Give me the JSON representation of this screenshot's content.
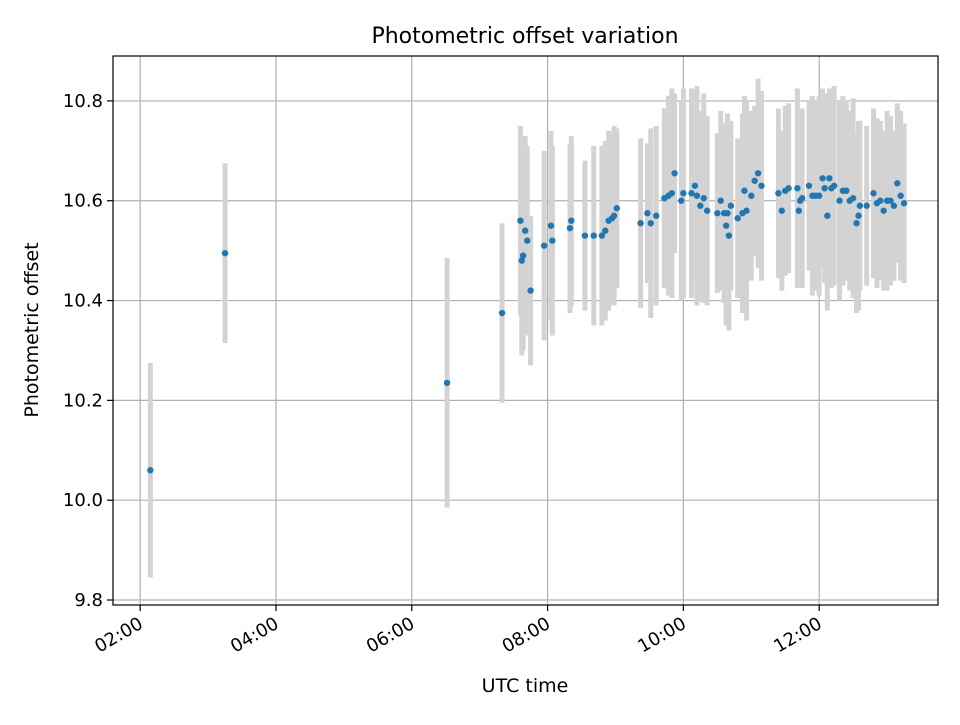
{
  "chart_data": {
    "type": "scatter",
    "title": "Photometric offset variation",
    "xlabel": "UTC time",
    "ylabel": "Photometric offset",
    "x_unit": "hours (UTC)",
    "xlim": [
      1.6,
      13.75
    ],
    "ylim": [
      9.79,
      10.89
    ],
    "x_ticks": [
      {
        "value": 2,
        "label": "02:00"
      },
      {
        "value": 4,
        "label": "04:00"
      },
      {
        "value": 6,
        "label": "06:00"
      },
      {
        "value": 8,
        "label": "08:00"
      },
      {
        "value": 10,
        "label": "10:00"
      },
      {
        "value": 12,
        "label": "12:00"
      }
    ],
    "y_ticks": [
      {
        "value": 9.8,
        "label": "9.8"
      },
      {
        "value": 10.0,
        "label": "10.0"
      },
      {
        "value": 10.2,
        "label": "10.2"
      },
      {
        "value": 10.4,
        "label": "10.4"
      },
      {
        "value": 10.6,
        "label": "10.6"
      },
      {
        "value": 10.8,
        "label": "10.8"
      }
    ],
    "grid": true,
    "colors": {
      "points": "#1f77b4",
      "error_bars": "#d3d3d3",
      "grid": "#b0b0b0"
    },
    "series": [
      {
        "x": [
          2.15,
          3.25,
          6.52,
          7.33,
          7.6,
          7.62,
          7.64,
          7.67,
          7.7,
          7.75,
          7.95,
          8.05,
          8.07,
          8.33,
          8.35,
          8.55,
          8.68,
          8.8,
          8.85,
          8.9,
          8.95,
          8.98,
          9.02,
          9.37,
          9.47,
          9.52,
          9.6,
          9.72,
          9.78,
          9.83,
          9.87,
          9.97,
          10.0,
          10.12,
          10.17,
          10.2,
          10.25,
          10.3,
          10.35,
          10.5,
          10.55,
          10.6,
          10.63,
          10.65,
          10.67,
          10.7,
          10.8,
          10.87,
          10.9,
          10.93,
          11.0,
          11.05,
          11.1,
          11.15,
          11.4,
          11.45,
          11.5,
          11.55,
          11.68,
          11.7,
          11.72,
          11.75,
          11.85,
          11.9,
          11.95,
          12.0,
          12.05,
          12.08,
          12.12,
          12.15,
          12.18,
          12.22,
          12.3,
          12.35,
          12.4,
          12.45,
          12.5,
          12.55,
          12.58,
          12.6,
          12.7,
          12.8,
          12.85,
          12.9,
          12.95,
          13.0,
          13.05,
          13.1,
          13.15,
          13.2,
          13.25
        ],
        "y": [
          10.06,
          10.495,
          10.235,
          10.375,
          10.56,
          10.48,
          10.49,
          10.54,
          10.52,
          10.42,
          10.51,
          10.55,
          10.52,
          10.545,
          10.56,
          10.53,
          10.53,
          10.53,
          10.54,
          10.56,
          10.565,
          10.57,
          10.585,
          10.555,
          10.575,
          10.555,
          10.57,
          10.605,
          10.61,
          10.615,
          10.655,
          10.6,
          10.615,
          10.615,
          10.63,
          10.61,
          10.59,
          10.605,
          10.58,
          10.575,
          10.6,
          10.575,
          10.55,
          10.575,
          10.53,
          10.59,
          10.565,
          10.575,
          10.62,
          10.58,
          10.61,
          10.64,
          10.655,
          10.63,
          10.615,
          10.58,
          10.62,
          10.625,
          10.625,
          10.58,
          10.6,
          10.605,
          10.63,
          10.61,
          10.61,
          10.61,
          10.645,
          10.625,
          10.57,
          10.645,
          10.625,
          10.63,
          10.6,
          10.62,
          10.62,
          10.6,
          10.605,
          10.555,
          10.57,
          10.59,
          10.59,
          10.615,
          10.595,
          10.6,
          10.58,
          10.6,
          10.6,
          10.59,
          10.635,
          10.61,
          10.595
        ],
        "yerr": [
          0.215,
          0.18,
          0.25,
          0.18,
          0.19,
          0.19,
          0.19,
          0.19,
          0.19,
          0.15,
          0.19,
          0.19,
          0.19,
          0.17,
          0.17,
          0.15,
          0.18,
          0.18,
          0.18,
          0.18,
          0.17,
          0.18,
          0.16,
          0.17,
          0.14,
          0.19,
          0.18,
          0.18,
          0.2,
          0.21,
          0.16,
          0.2,
          0.21,
          0.21,
          0.19,
          0.22,
          0.19,
          0.21,
          0.19,
          0.16,
          0.18,
          0.18,
          0.2,
          0.2,
          0.19,
          0.17,
          0.16,
          0.2,
          0.19,
          0.22,
          0.17,
          0.15,
          0.19,
          0.19,
          0.17,
          0.16,
          0.17,
          0.17,
          0.2,
          0.15,
          0.17,
          0.18,
          0.17,
          0.2,
          0.19,
          0.2,
          0.18,
          0.19,
          0.19,
          0.18,
          0.2,
          0.2,
          0.2,
          0.19,
          0.18,
          0.18,
          0.2,
          0.18,
          0.19,
          0.17,
          0.16,
          0.17,
          0.17,
          0.16,
          0.16,
          0.18,
          0.17,
          0.15,
          0.16,
          0.17,
          0.16
        ]
      }
    ]
  }
}
